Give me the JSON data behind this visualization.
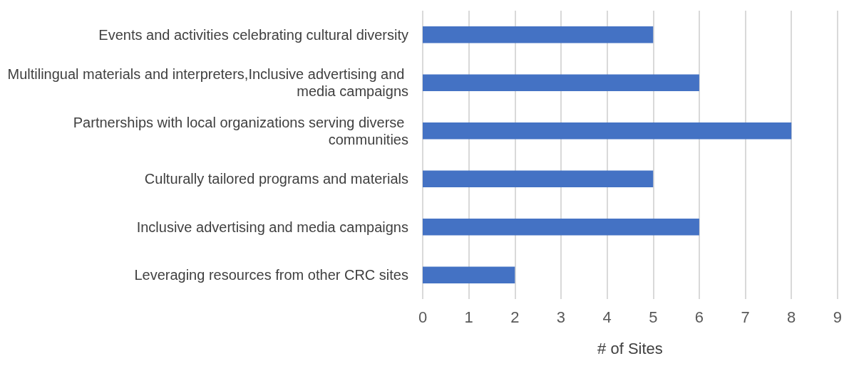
{
  "chart_data": {
    "type": "bar",
    "orientation": "horizontal",
    "xlabel": "# of Sites",
    "categories": [
      "Events and activities celebrating cultural diversity",
      "Multilingual materials and interpreters,Inclusive advertising and media campaigns",
      "Partnerships with local organizations serving diverse communities",
      "Culturally tailored programs and materials",
      "Inclusive advertising and media campaigns",
      "Leveraging resources from other CRC sites"
    ],
    "values": [
      5,
      6,
      8,
      5,
      6,
      2
    ],
    "color": "#4472c4",
    "xlim": [
      0,
      9
    ],
    "xticks": [
      0,
      1,
      2,
      3,
      4,
      5,
      6,
      7,
      8,
      9
    ],
    "grid": "x"
  }
}
